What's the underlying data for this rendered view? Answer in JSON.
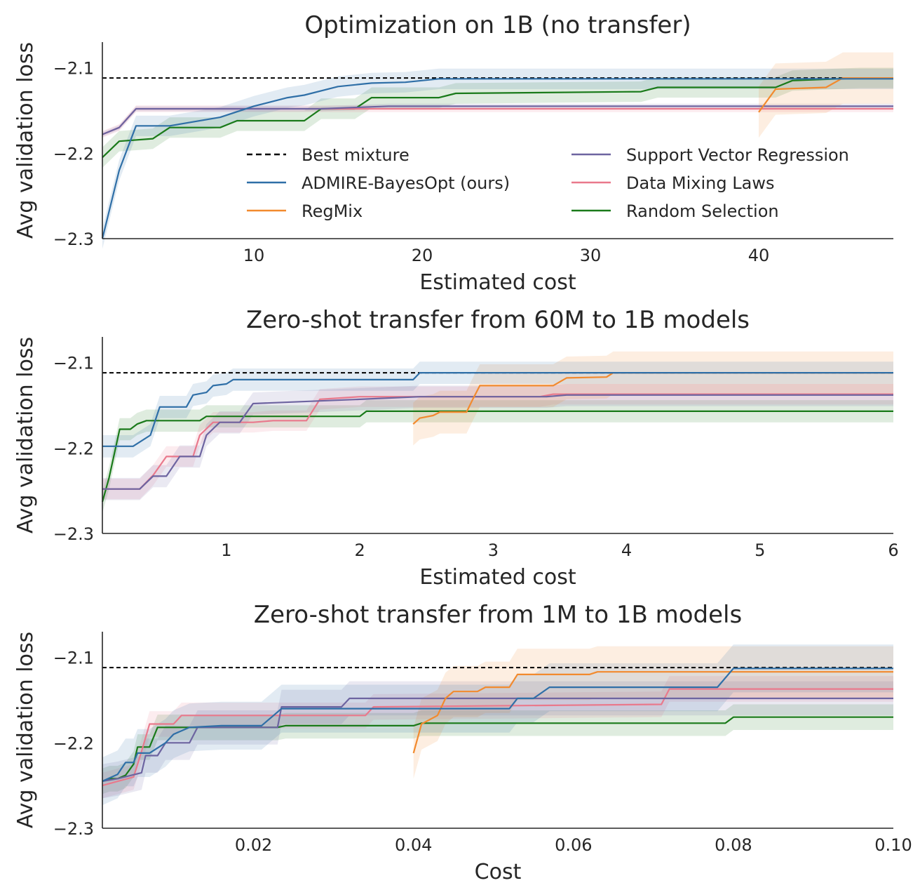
{
  "colors": {
    "best": "#000000",
    "admire": "#2f6fa7",
    "regmix": "#f28a2e",
    "svr": "#6d64a0",
    "dml": "#e9798c",
    "random": "#1a7a1a"
  },
  "legend": [
    {
      "key": "best",
      "label": "Best mixture",
      "style": "dashed"
    },
    {
      "key": "admire",
      "label": "ADMIRE-BayesOpt (ours)",
      "style": "solid"
    },
    {
      "key": "regmix",
      "label": "RegMix",
      "style": "solid"
    },
    {
      "key": "svr",
      "label": "Support Vector Regression",
      "style": "solid"
    },
    {
      "key": "dml",
      "label": "Data Mixing Laws",
      "style": "solid"
    },
    {
      "key": "random",
      "label": "Random Selection",
      "style": "solid"
    }
  ],
  "chart_data": [
    {
      "type": "line",
      "title": "Optimization on 1B (no transfer)",
      "xlabel": "Estimated cost",
      "ylabel": "Avg validation loss",
      "xlim": [
        1,
        48
      ],
      "ylim": [
        -2.3,
        -2.07
      ],
      "xticks": [
        10,
        20,
        30,
        40
      ],
      "xtick_labels": [
        "10",
        "20",
        "30",
        "40"
      ],
      "yticks": [
        -2.3,
        -2.2,
        -2.1
      ],
      "ytick_labels": [
        "−2.3",
        "−2.2",
        "−2.1"
      ],
      "best_mixture": -2.112,
      "legend": "inside",
      "series": [
        {
          "key": "admire",
          "name": "ADMIRE-BayesOpt (ours)",
          "band": 0.012,
          "points": [
            [
              1,
              -2.3
            ],
            [
              2,
              -2.22
            ],
            [
              3,
              -2.168
            ],
            [
              5,
              -2.168
            ],
            [
              8,
              -2.158
            ],
            [
              10,
              -2.145
            ],
            [
              12,
              -2.135
            ],
            [
              13,
              -2.132
            ],
            [
              15,
              -2.122
            ],
            [
              17,
              -2.118
            ],
            [
              19,
              -2.117
            ],
            [
              21,
              -2.113
            ],
            [
              48,
              -2.113
            ]
          ]
        },
        {
          "key": "regmix",
          "name": "RegMix",
          "band": 0.03,
          "points": [
            [
              40,
              -2.152
            ],
            [
              41,
              -2.125
            ],
            [
              44,
              -2.123
            ],
            [
              45,
              -2.112
            ],
            [
              48,
              -2.112
            ]
          ]
        },
        {
          "key": "svr",
          "name": "Support Vector Regression",
          "band": 0.003,
          "points": [
            [
              1,
              -2.178
            ],
            [
              2,
              -2.17
            ],
            [
              3,
              -2.148
            ],
            [
              14,
              -2.148
            ],
            [
              18,
              -2.145
            ],
            [
              48,
              -2.145
            ]
          ]
        },
        {
          "key": "dml",
          "name": "Data Mixing Laws",
          "band": 0.004,
          "points": [
            [
              1,
              -2.178
            ],
            [
              2,
              -2.17
            ],
            [
              3,
              -2.148
            ],
            [
              48,
              -2.148
            ]
          ]
        },
        {
          "key": "random",
          "name": "Random Selection",
          "band": 0.012,
          "points": [
            [
              1,
              -2.205
            ],
            [
              2,
              -2.186
            ],
            [
              4,
              -2.183
            ],
            [
              5,
              -2.17
            ],
            [
              8,
              -2.17
            ],
            [
              9,
              -2.162
            ],
            [
              13,
              -2.162
            ],
            [
              14,
              -2.148
            ],
            [
              16,
              -2.148
            ],
            [
              17,
              -2.135
            ],
            [
              21,
              -2.135
            ],
            [
              22,
              -2.13
            ],
            [
              33,
              -2.128
            ],
            [
              34,
              -2.123
            ],
            [
              41,
              -2.123
            ],
            [
              42,
              -2.115
            ],
            [
              46,
              -2.112
            ],
            [
              48,
              -2.112
            ]
          ]
        }
      ]
    },
    {
      "type": "line",
      "title": "Zero-shot transfer from 60M to 1B models",
      "xlabel": "Estimated cost",
      "ylabel": "Avg validation loss",
      "xlim": [
        0.07,
        6
      ],
      "ylim": [
        -2.3,
        -2.07
      ],
      "xticks": [
        1,
        2,
        3,
        4,
        5,
        6
      ],
      "xtick_labels": [
        "1",
        "2",
        "3",
        "4",
        "5",
        "6"
      ],
      "yticks": [
        -2.3,
        -2.2,
        -2.1
      ],
      "ytick_labels": [
        "−2.3",
        "−2.2",
        "−2.1"
      ],
      "best_mixture": -2.112,
      "series": [
        {
          "key": "admire",
          "name": "ADMIRE-BayesOpt (ours)",
          "band": 0.013,
          "points": [
            [
              0.07,
              -2.198
            ],
            [
              0.3,
              -2.198
            ],
            [
              0.43,
              -2.185
            ],
            [
              0.5,
              -2.152
            ],
            [
              0.7,
              -2.152
            ],
            [
              0.75,
              -2.138
            ],
            [
              0.85,
              -2.135
            ],
            [
              0.9,
              -2.127
            ],
            [
              1.0,
              -2.125
            ],
            [
              1.05,
              -2.12
            ],
            [
              2.4,
              -2.12
            ],
            [
              2.45,
              -2.112
            ],
            [
              6.0,
              -2.112
            ]
          ]
        },
        {
          "key": "regmix",
          "name": "RegMix",
          "band": 0.025,
          "points": [
            [
              2.4,
              -2.172
            ],
            [
              2.45,
              -2.165
            ],
            [
              2.55,
              -2.162
            ],
            [
              2.6,
              -2.158
            ],
            [
              2.8,
              -2.158
            ],
            [
              2.85,
              -2.142
            ],
            [
              2.9,
              -2.127
            ],
            [
              3.45,
              -2.127
            ],
            [
              3.55,
              -2.118
            ],
            [
              3.85,
              -2.117
            ],
            [
              3.9,
              -2.112
            ],
            [
              6.0,
              -2.112
            ]
          ]
        },
        {
          "key": "svr",
          "name": "Support Vector Regression",
          "band": 0.013,
          "points": [
            [
              0.07,
              -2.248
            ],
            [
              0.35,
              -2.248
            ],
            [
              0.45,
              -2.233
            ],
            [
              0.55,
              -2.233
            ],
            [
              0.65,
              -2.21
            ],
            [
              0.8,
              -2.21
            ],
            [
              0.85,
              -2.185
            ],
            [
              0.95,
              -2.17
            ],
            [
              1.1,
              -2.17
            ],
            [
              1.2,
              -2.148
            ],
            [
              2.0,
              -2.143
            ],
            [
              2.45,
              -2.14
            ],
            [
              2.6,
              -2.14
            ],
            [
              3.4,
              -2.14
            ],
            [
              3.55,
              -2.138
            ],
            [
              6.0,
              -2.138
            ]
          ]
        },
        {
          "key": "dml",
          "name": "Data Mixing Laws",
          "band": 0.012,
          "points": [
            [
              0.07,
              -2.248
            ],
            [
              0.35,
              -2.248
            ],
            [
              0.45,
              -2.232
            ],
            [
              0.55,
              -2.21
            ],
            [
              0.75,
              -2.21
            ],
            [
              0.8,
              -2.185
            ],
            [
              0.9,
              -2.17
            ],
            [
              1.2,
              -2.17
            ],
            [
              1.35,
              -2.168
            ],
            [
              1.6,
              -2.168
            ],
            [
              1.7,
              -2.143
            ],
            [
              2.0,
              -2.14
            ],
            [
              3.35,
              -2.14
            ],
            [
              3.45,
              -2.137
            ],
            [
              6.0,
              -2.137
            ]
          ]
        },
        {
          "key": "random",
          "name": "Random Selection",
          "band": 0.013,
          "points": [
            [
              0.07,
              -2.263
            ],
            [
              0.12,
              -2.235
            ],
            [
              0.2,
              -2.178
            ],
            [
              0.28,
              -2.178
            ],
            [
              0.33,
              -2.172
            ],
            [
              0.4,
              -2.168
            ],
            [
              0.8,
              -2.168
            ],
            [
              0.85,
              -2.163
            ],
            [
              2.0,
              -2.163
            ],
            [
              2.05,
              -2.157
            ],
            [
              6.0,
              -2.157
            ]
          ]
        }
      ]
    },
    {
      "type": "line",
      "title": "Zero-shot transfer from 1M to 1B models",
      "xlabel": "Cost",
      "ylabel": "Avg validation loss",
      "xlim": [
        0.0011,
        0.1
      ],
      "ylim": [
        -2.3,
        -2.07
      ],
      "xticks": [
        0.02,
        0.04,
        0.06,
        0.08,
        0.1
      ],
      "xtick_labels": [
        "0.02",
        "0.04",
        "0.06",
        "0.08",
        "0.10"
      ],
      "yticks": [
        -2.3,
        -2.2,
        -2.1
      ],
      "ytick_labels": [
        "−2.3",
        "−2.2",
        "−2.1"
      ],
      "best_mixture": -2.112,
      "series": [
        {
          "key": "admire",
          "name": "ADMIRE-BayesOpt (ours)",
          "band": 0.028,
          "points": [
            [
              0.0011,
              -2.245
            ],
            [
              0.003,
              -2.237
            ],
            [
              0.004,
              -2.223
            ],
            [
              0.005,
              -2.223
            ],
            [
              0.0055,
              -2.212
            ],
            [
              0.007,
              -2.212
            ],
            [
              0.009,
              -2.2
            ],
            [
              0.01,
              -2.19
            ],
            [
              0.012,
              -2.182
            ],
            [
              0.016,
              -2.18
            ],
            [
              0.021,
              -2.18
            ],
            [
              0.0235,
              -2.16
            ],
            [
              0.04,
              -2.16
            ],
            [
              0.045,
              -2.16
            ],
            [
              0.052,
              -2.16
            ],
            [
              0.053,
              -2.148
            ],
            [
              0.055,
              -2.148
            ],
            [
              0.057,
              -2.135
            ],
            [
              0.078,
              -2.135
            ],
            [
              0.08,
              -2.113
            ],
            [
              0.1,
              -2.113
            ]
          ]
        },
        {
          "key": "regmix",
          "name": "RegMix",
          "band": 0.03,
          "points": [
            [
              0.04,
              -2.212
            ],
            [
              0.041,
              -2.178
            ],
            [
              0.043,
              -2.168
            ],
            [
              0.044,
              -2.148
            ],
            [
              0.045,
              -2.14
            ],
            [
              0.048,
              -2.14
            ],
            [
              0.049,
              -2.135
            ],
            [
              0.052,
              -2.135
            ],
            [
              0.053,
              -2.12
            ],
            [
              0.062,
              -2.12
            ],
            [
              0.063,
              -2.117
            ],
            [
              0.1,
              -2.117
            ]
          ]
        },
        {
          "key": "svr",
          "name": "Support Vector Regression",
          "band": 0.02,
          "points": [
            [
              0.0011,
              -2.245
            ],
            [
              0.003,
              -2.242
            ],
            [
              0.006,
              -2.235
            ],
            [
              0.0065,
              -2.215
            ],
            [
              0.008,
              -2.215
            ],
            [
              0.009,
              -2.2
            ],
            [
              0.012,
              -2.2
            ],
            [
              0.013,
              -2.182
            ],
            [
              0.023,
              -2.182
            ],
            [
              0.0235,
              -2.158
            ],
            [
              0.031,
              -2.158
            ],
            [
              0.032,
              -2.148
            ],
            [
              0.1,
              -2.148
            ]
          ]
        },
        {
          "key": "dml",
          "name": "Data Mixing Laws",
          "band": 0.015,
          "points": [
            [
              0.0011,
              -2.25
            ],
            [
              0.005,
              -2.24
            ],
            [
              0.006,
              -2.21
            ],
            [
              0.007,
              -2.178
            ],
            [
              0.01,
              -2.178
            ],
            [
              0.011,
              -2.168
            ],
            [
              0.034,
              -2.168
            ],
            [
              0.035,
              -2.158
            ],
            [
              0.071,
              -2.155
            ],
            [
              0.072,
              -2.137
            ],
            [
              0.1,
              -2.137
            ]
          ]
        },
        {
          "key": "random",
          "name": "Random Selection",
          "band": 0.015,
          "points": [
            [
              0.0011,
              -2.245
            ],
            [
              0.002,
              -2.242
            ],
            [
              0.003,
              -2.242
            ],
            [
              0.004,
              -2.238
            ],
            [
              0.005,
              -2.225
            ],
            [
              0.0055,
              -2.205
            ],
            [
              0.007,
              -2.205
            ],
            [
              0.008,
              -2.182
            ],
            [
              0.023,
              -2.182
            ],
            [
              0.024,
              -2.18
            ],
            [
              0.04,
              -2.18
            ],
            [
              0.041,
              -2.177
            ],
            [
              0.079,
              -2.177
            ],
            [
              0.08,
              -2.17
            ],
            [
              0.1,
              -2.17
            ]
          ]
        }
      ]
    }
  ]
}
